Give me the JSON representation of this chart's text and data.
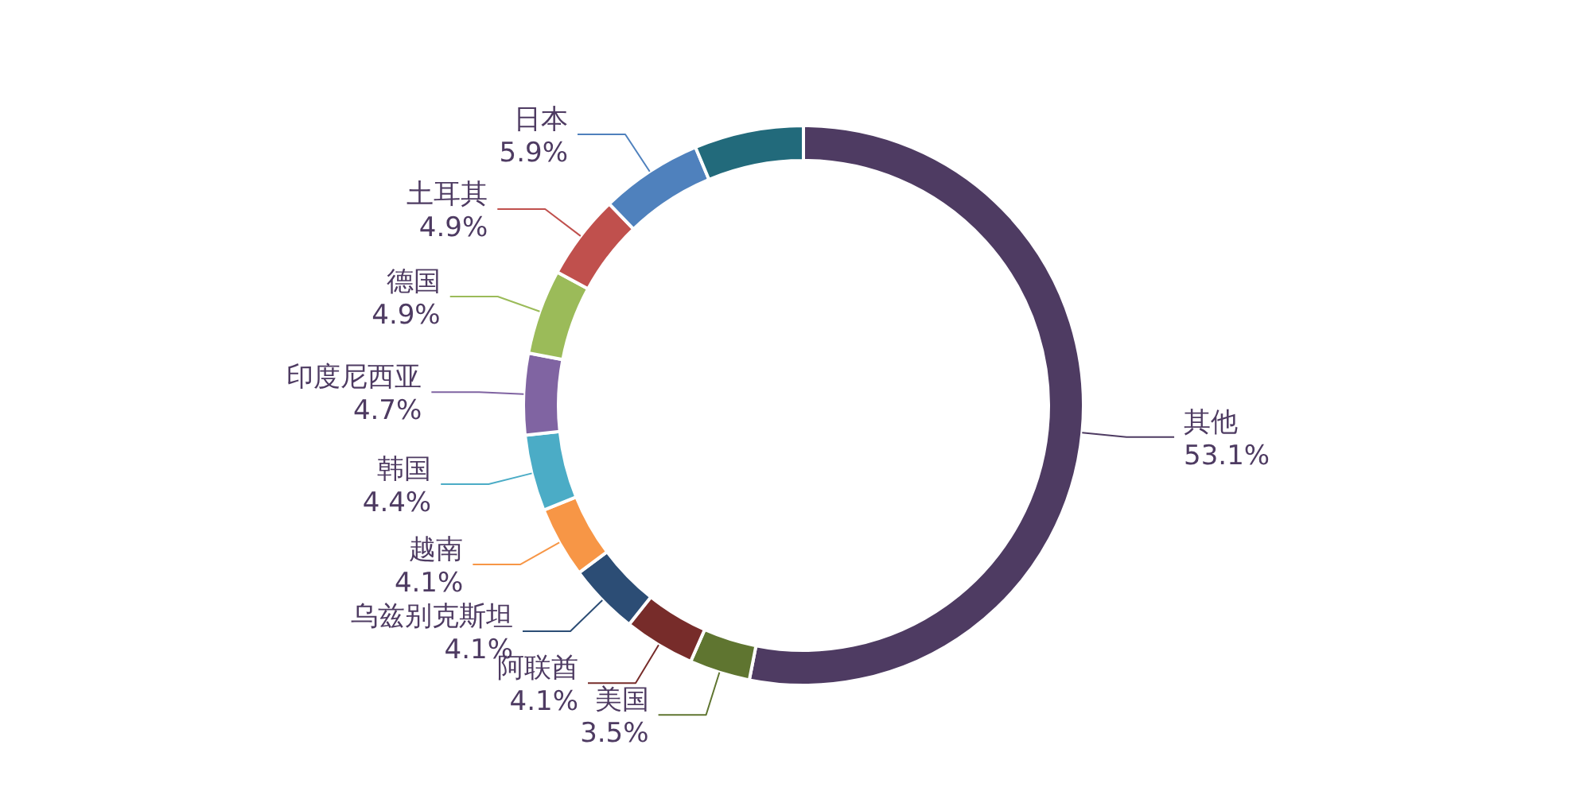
{
  "chart_data": {
    "type": "donut",
    "categories": [
      "其他",
      "美国",
      "阿联酋",
      "乌兹别克斯坦",
      "越南",
      "韩国",
      "印度尼西亚",
      "德国",
      "土耳其",
      "日本",
      null
    ],
    "values": [
      53.1,
      3.5,
      4.1,
      4.1,
      4.1,
      4.4,
      4.7,
      4.9,
      4.9,
      5.9,
      6.3
    ],
    "colors": [
      "#4e3b62",
      "#5f7530",
      "#772c2a",
      "#2c4d75",
      "#f79646",
      "#4bacc6",
      "#8064a2",
      "#9bbb59",
      "#c0504d",
      "#4f81bd",
      "#226a7b"
    ],
    "value_labels": [
      "53.1%",
      "3.5%",
      "4.1%",
      "4.1%",
      "4.1%",
      "4.4%",
      "4.7%",
      "4.9%",
      "4.9%",
      "5.9%",
      null
    ],
    "legend": false
  }
}
